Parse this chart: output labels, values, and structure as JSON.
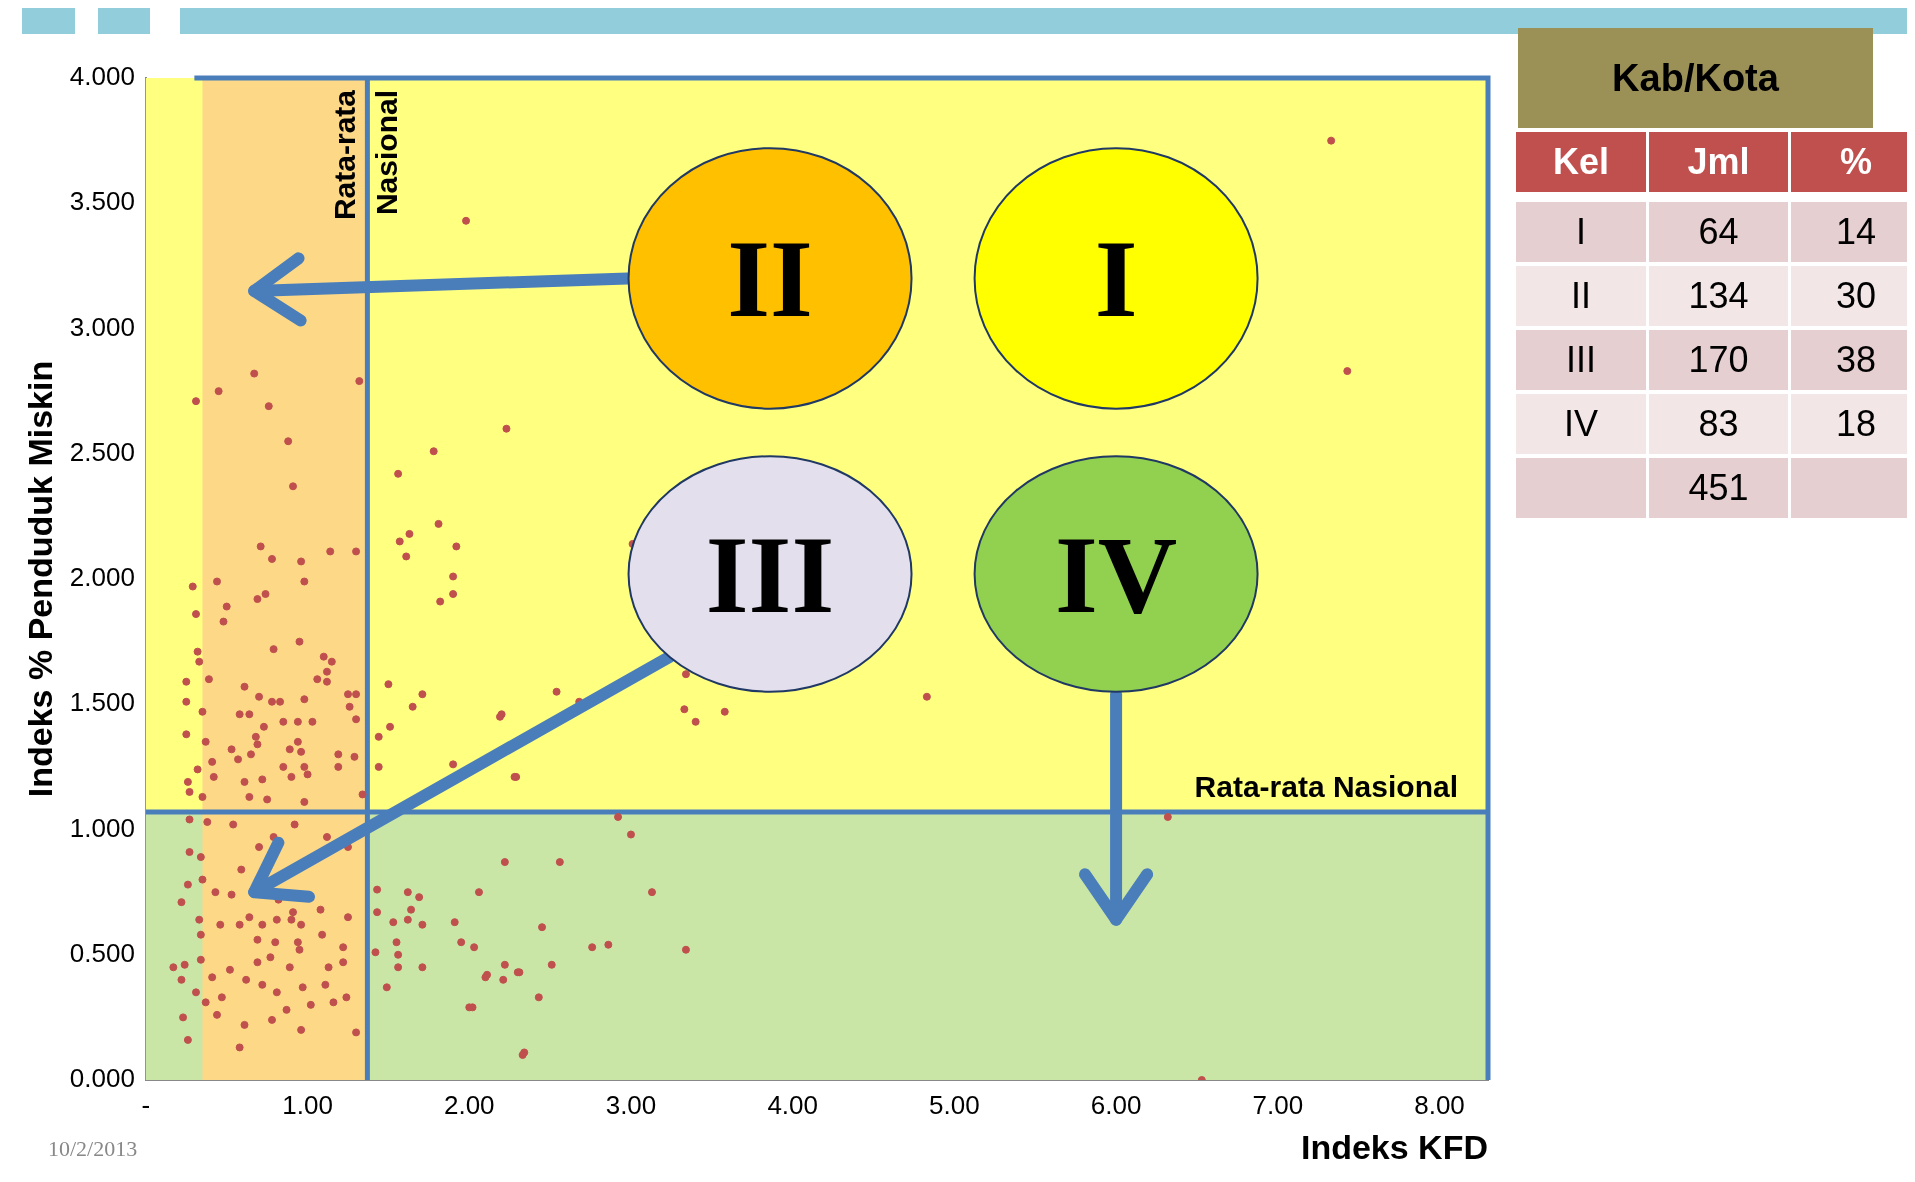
{
  "chart_data": {
    "type": "scatter",
    "xlabel": "Indeks KFD",
    "ylabel": "Indeks % Penduduk Miskin",
    "color": "#c0504d",
    "marker": "circle",
    "x": [
      0.67,
      0.45,
      0.31,
      0.76,
      1.32,
      0.88,
      0.91,
      0.71,
      0.78,
      0.96,
      1.14,
      1.3,
      0.44,
      0.98,
      0.29,
      0.69,
      0.74,
      0.5,
      0.48,
      0.31,
      0.79,
      0.95,
      0.32,
      0.33,
      1.1,
      1.15,
      1.12,
      1.06,
      1.12,
      0.25,
      0.39,
      0.61,
      0.7,
      0.78,
      0.83,
      0.98,
      1.25,
      1.3,
      1.26,
      1.3,
      0.25,
      0.35,
      0.58,
      0.64,
      0.73,
      0.85,
      0.94,
      1.03,
      0.25,
      0.37,
      0.68,
      0.69,
      0.94,
      0.53,
      0.57,
      0.65,
      0.89,
      0.96,
      1.19,
      1.29,
      0.32,
      0.41,
      0.85,
      0.98,
      1.19,
      0.26,
      0.42,
      0.61,
      0.72,
      0.9,
      1.0,
      0.27,
      0.35,
      0.64,
      0.75,
      0.98,
      1.34,
      0.27,
      0.38,
      0.54,
      0.79,
      0.92,
      1.12,
      1.25,
      0.27,
      0.34,
      0.7,
      0.59,
      0.26,
      0.22,
      0.35,
      0.43,
      0.53,
      0.64,
      0.82,
      0.91,
      1.08,
      1.25,
      0.33,
      0.34,
      0.46,
      0.58,
      0.72,
      0.81,
      0.9,
      0.96,
      0.69,
      0.8,
      0.94,
      1.09,
      1.22,
      0.17,
      0.24,
      0.22,
      0.34,
      0.41,
      0.52,
      0.69,
      0.77,
      0.89,
      0.95,
      1.13,
      1.22,
      0.31,
      0.37,
      0.47,
      0.62,
      0.72,
      0.81,
      0.97,
      1.11,
      1.24,
      0.44,
      0.61,
      0.78,
      0.87,
      0.96,
      1.02,
      1.16,
      0.23,
      0.26,
      0.58,
      1.3,
      1.56,
      1.78,
      1.57,
      1.63,
      1.61,
      1.81,
      1.92,
      1.9,
      1.9,
      1.82,
      2.23,
      1.5,
      1.71,
      1.65,
      1.51,
      1.44,
      1.44,
      1.9,
      2.2,
      2.29,
      2.22,
      1.43,
      1.62,
      1.69,
      2.06,
      1.64,
      1.43,
      1.53,
      1.62,
      1.71,
      1.91,
      1.55,
      1.95,
      2.03,
      1.42,
      1.56,
      1.56,
      1.71,
      2.11,
      2.22,
      2.31,
      1.49,
      2.02,
      2.34,
      1.98,
      3.01,
      3.34,
      3.33,
      3.4,
      3.58,
      4.83,
      2.54,
      2.68,
      2.19,
      2.28,
      2.92,
      3.0,
      2.56,
      3.13,
      2.45,
      2.76,
      2.86,
      3.34,
      2.51,
      2.21,
      2.3,
      2.1,
      2.43,
      2.0,
      2.33,
      7.33,
      7.43,
      6.32,
      6.53
    ],
    "values": [
      2.82,
      2.75,
      2.71,
      2.69,
      2.79,
      2.55,
      2.37,
      2.13,
      2.08,
      2.07,
      2.11,
      2.11,
      1.99,
      1.99,
      1.97,
      1.92,
      1.94,
      1.89,
      1.83,
      1.86,
      1.72,
      1.75,
      1.71,
      1.67,
      1.69,
      1.67,
      1.63,
      1.6,
      1.59,
      1.59,
      1.6,
      1.57,
      1.53,
      1.51,
      1.51,
      1.52,
      1.54,
      1.54,
      1.49,
      1.44,
      1.51,
      1.47,
      1.46,
      1.46,
      1.41,
      1.43,
      1.43,
      1.43,
      1.38,
      1.35,
      1.37,
      1.34,
      1.35,
      1.32,
      1.28,
      1.3,
      1.32,
      1.31,
      1.3,
      1.29,
      1.24,
      1.27,
      1.25,
      1.25,
      1.25,
      1.19,
      1.21,
      1.19,
      1.2,
      1.21,
      1.22,
      1.15,
      1.13,
      1.13,
      1.12,
      1.11,
      1.14,
      1.04,
      1.03,
      1.02,
      0.97,
      1.02,
      0.97,
      0.93,
      0.91,
      0.89,
      0.93,
      0.84,
      0.78,
      0.71,
      0.8,
      0.75,
      0.74,
      0.65,
      0.72,
      0.67,
      0.68,
      0.65,
      0.64,
      0.58,
      0.62,
      0.62,
      0.62,
      0.64,
      0.64,
      0.62,
      0.56,
      0.55,
      0.55,
      0.58,
      0.53,
      0.45,
      0.46,
      0.4,
      0.48,
      0.41,
      0.44,
      0.47,
      0.49,
      0.45,
      0.52,
      0.45,
      0.47,
      0.35,
      0.31,
      0.33,
      0.4,
      0.38,
      0.35,
      0.37,
      0.38,
      0.33,
      0.26,
      0.22,
      0.24,
      0.28,
      0.2,
      0.3,
      0.31,
      0.25,
      0.16,
      0.13,
      0.19,
      2.42,
      2.51,
      2.15,
      2.18,
      2.09,
      2.22,
      2.13,
      2.01,
      1.94,
      1.91,
      2.6,
      1.58,
      1.54,
      1.49,
      1.41,
      1.37,
      1.25,
      1.26,
      1.46,
      1.21,
      0.87,
      0.76,
      0.75,
      0.73,
      0.75,
      0.68,
      0.67,
      0.63,
      0.64,
      0.62,
      0.63,
      0.55,
      0.55,
      0.53,
      0.51,
      0.5,
      0.45,
      0.45,
      0.42,
      0.46,
      0.43,
      0.37,
      0.29,
      0.11,
      3.43,
      2.14,
      1.62,
      1.48,
      1.43,
      1.47,
      1.53,
      1.55,
      1.51,
      1.45,
      1.21,
      1.05,
      0.98,
      0.87,
      0.75,
      0.61,
      0.53,
      0.54,
      0.52,
      0.46,
      0.4,
      0.43,
      0.41,
      0.33,
      0.29,
      0.1,
      3.75,
      2.83,
      1.05,
      0.0
    ],
    "xlim": [
      0,
      8.3
    ],
    "xticks": [
      {
        "value": 0,
        "label": "-"
      },
      {
        "value": 1,
        "label": "1.00"
      },
      {
        "value": 2,
        "label": "2.00"
      },
      {
        "value": 3,
        "label": "3.00"
      },
      {
        "value": 4,
        "label": "4.00"
      },
      {
        "value": 5,
        "label": "5.00"
      },
      {
        "value": 6,
        "label": "6.00"
      },
      {
        "value": 7,
        "label": "7.00"
      },
      {
        "value": 8,
        "label": "8.00"
      }
    ],
    "ylim": [
      0,
      4
    ],
    "yticks": [
      {
        "value": 0,
        "label": "0.000"
      },
      {
        "value": 0.5,
        "label": "0.500"
      },
      {
        "value": 1,
        "label": "1.000"
      },
      {
        "value": 1.5,
        "label": "1.500"
      },
      {
        "value": 2,
        "label": "2.000"
      },
      {
        "value": 2.5,
        "label": "2.500"
      },
      {
        "value": 3,
        "label": "3.000"
      },
      {
        "value": 3.5,
        "label": "3.500"
      },
      {
        "value": 4,
        "label": "4.000"
      }
    ],
    "bands": [
      {
        "axis": "y",
        "from": 1.07,
        "to": 4,
        "color": "#ffff80"
      },
      {
        "axis": "y",
        "from": 0,
        "to": 1.07,
        "color": "#c9e6a6"
      },
      {
        "axis": "x",
        "from": 0.35,
        "to": 1.37,
        "color": "#fdd987"
      }
    ],
    "ref_lines": [
      {
        "axis": "x",
        "value": 1.37,
        "label": "Rata-rata Nasional",
        "color": "#4a7ebb"
      },
      {
        "axis": "y",
        "value": 1.07,
        "label": "Rata-rata Nasional",
        "color": "#4a7ebb"
      }
    ],
    "annotations": [
      "II",
      "I",
      "III",
      "IV",
      "Kab/Kota",
      "Kel",
      "Jml",
      "%",
      "I",
      "64",
      "14",
      "II",
      "134",
      "30",
      "III",
      "170",
      "38",
      "IV",
      "83",
      "18",
      "451",
      "10/2/2013"
    ]
  }
}
